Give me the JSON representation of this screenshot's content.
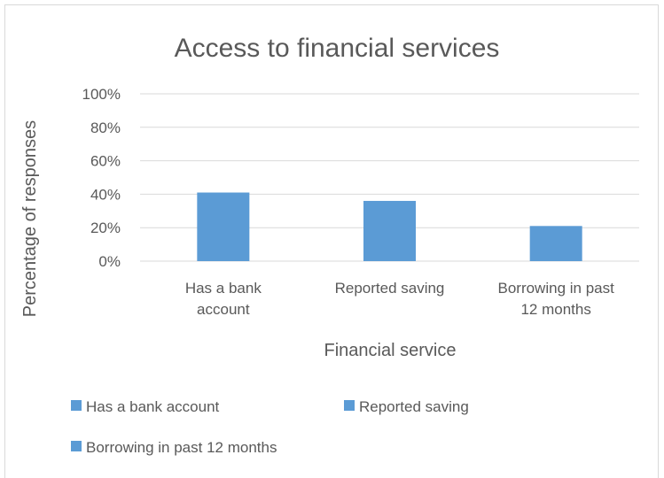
{
  "chart_data": {
    "type": "bar",
    "title": "Access to financial services",
    "xlabel": "Financial service",
    "ylabel": "Percentage of responses",
    "categories": [
      "Has a bank account",
      "Reported saving",
      "Borrowing in past 12 months"
    ],
    "category_label_lines": [
      [
        "Has a bank",
        "account"
      ],
      [
        "Reported saving"
      ],
      [
        "Borrowing in past",
        "12 months"
      ]
    ],
    "values": [
      41,
      36,
      21
    ],
    "ylim": [
      0,
      100
    ],
    "yticks": [
      "0%",
      "20%",
      "40%",
      "60%",
      "80%",
      "100%"
    ],
    "ytick_values": [
      0,
      20,
      40,
      60,
      80,
      100
    ],
    "grid": true,
    "legend_position": "bottom",
    "legend": [
      "Has a bank account",
      "Reported saving",
      "Borrowing in past 12 months"
    ],
    "bar_color": "#5b9bd5"
  }
}
